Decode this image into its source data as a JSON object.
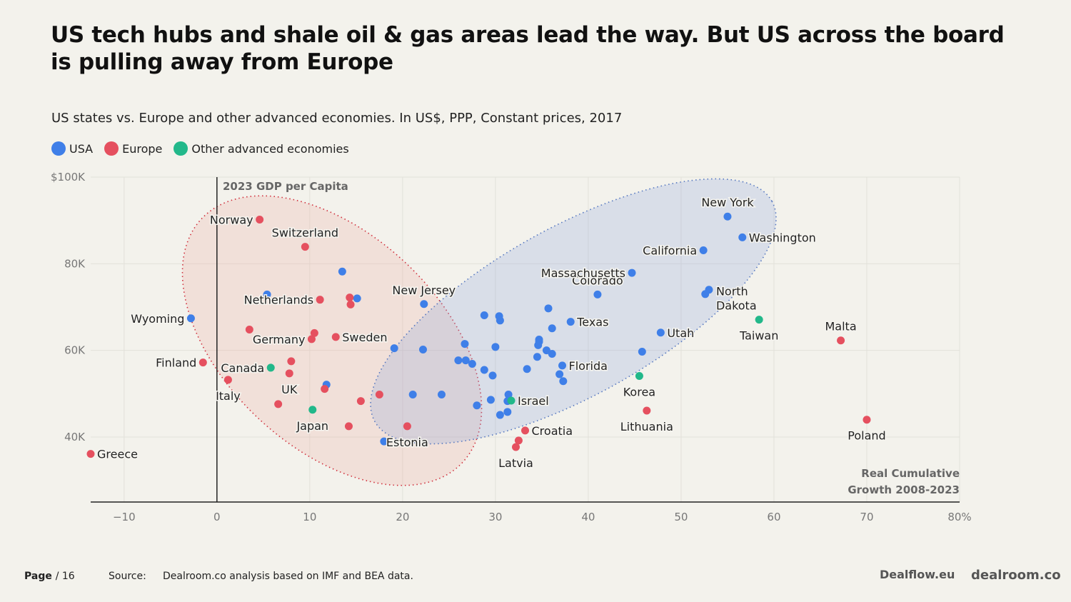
{
  "title": "US tech hubs and shale oil & gas areas lead the way. But US across the board is pulling away from Europe",
  "subtitle": "US states vs. Europe and other advanced economies. In US$, PPP, Constant prices, 2017",
  "legend": [
    {
      "label": "USA",
      "color": "#3f7fe8"
    },
    {
      "label": "Europe",
      "color": "#e5505f"
    },
    {
      "label": "Other advanced economies",
      "color": "#22b88a"
    }
  ],
  "footer": {
    "page": "Page",
    "page_num": "/ 16",
    "source_label": "Source:",
    "source": "Dealroom.co analysis based on IMF and BEA data.",
    "logo_dealflow": "Dealflow.eu",
    "logo_dealroom": "dealroom.co"
  },
  "chart_data": {
    "type": "scatter",
    "ylabel": "2023 GDP per Capita",
    "xlabel": "Real Cumulative Growth 2008-2023",
    "xlim": [
      -13.6,
      80
    ],
    "ylim": [
      25,
      100
    ],
    "x_ticks": [
      {
        "v": -10,
        "label": "−10"
      },
      {
        "v": 0,
        "label": "0"
      },
      {
        "v": 10,
        "label": "10"
      },
      {
        "v": 20,
        "label": "20"
      },
      {
        "v": 30,
        "label": "30"
      },
      {
        "v": 40,
        "label": "40"
      },
      {
        "v": 50,
        "label": "50"
      },
      {
        "v": 60,
        "label": "60"
      },
      {
        "v": 70,
        "label": "70"
      },
      {
        "v": 80,
        "label": "80%"
      }
    ],
    "y_ticks": [
      {
        "v": 100,
        "label": "$100K"
      },
      {
        "v": 80,
        "label": "80K"
      },
      {
        "v": 60,
        "label": "60K"
      },
      {
        "v": 40,
        "label": "40K"
      }
    ],
    "grid": true,
    "series": [
      {
        "name": "USA",
        "color": "#3f7fe8",
        "points": [
          {
            "x": -2.8,
            "y": 67.4,
            "label": "Wyoming"
          },
          {
            "x": 13.5,
            "y": 78.2
          },
          {
            "x": 15.1,
            "y": 72.0
          },
          {
            "x": 5.4,
            "y": 72.9
          },
          {
            "x": 11.8,
            "y": 52.1
          },
          {
            "x": 22.3,
            "y": 70.7,
            "label": "New Jersey"
          },
          {
            "x": 18.0,
            "y": 39.0
          },
          {
            "x": 19.1,
            "y": 60.5
          },
          {
            "x": 22.2,
            "y": 60.2
          },
          {
            "x": 21.1,
            "y": 49.8
          },
          {
            "x": 24.2,
            "y": 49.8
          },
          {
            "x": 28.8,
            "y": 68.1
          },
          {
            "x": 30.4,
            "y": 67.9
          },
          {
            "x": 30.5,
            "y": 66.9
          },
          {
            "x": 35.7,
            "y": 69.7
          },
          {
            "x": 41.0,
            "y": 72.9,
            "label": "Colorado"
          },
          {
            "x": 38.1,
            "y": 66.6,
            "label": "Texas"
          },
          {
            "x": 36.1,
            "y": 65.1
          },
          {
            "x": 26.7,
            "y": 61.5
          },
          {
            "x": 30.0,
            "y": 60.8
          },
          {
            "x": 26.0,
            "y": 57.7
          },
          {
            "x": 26.8,
            "y": 57.7
          },
          {
            "x": 27.5,
            "y": 56.9
          },
          {
            "x": 28.8,
            "y": 55.5
          },
          {
            "x": 29.7,
            "y": 54.2
          },
          {
            "x": 33.4,
            "y": 55.7
          },
          {
            "x": 34.7,
            "y": 62.5
          },
          {
            "x": 34.7,
            "y": 62.0
          },
          {
            "x": 34.6,
            "y": 61.2
          },
          {
            "x": 35.5,
            "y": 60.0
          },
          {
            "x": 36.1,
            "y": 59.2
          },
          {
            "x": 34.5,
            "y": 58.5
          },
          {
            "x": 37.2,
            "y": 56.5,
            "label": "Florida"
          },
          {
            "x": 36.9,
            "y": 54.5
          },
          {
            "x": 37.3,
            "y": 52.9
          },
          {
            "x": 45.8,
            "y": 59.7
          },
          {
            "x": 47.8,
            "y": 64.1,
            "label": "Utah"
          },
          {
            "x": 28.0,
            "y": 47.3
          },
          {
            "x": 29.5,
            "y": 48.6
          },
          {
            "x": 31.4,
            "y": 49.8
          },
          {
            "x": 31.3,
            "y": 48.3
          },
          {
            "x": 31.3,
            "y": 45.8
          },
          {
            "x": 30.5,
            "y": 45.1
          },
          {
            "x": 44.7,
            "y": 77.9,
            "label": "Massachusetts"
          },
          {
            "x": 55.0,
            "y": 90.9,
            "label": "New York"
          },
          {
            "x": 56.6,
            "y": 86.1,
            "label": "Washington"
          },
          {
            "x": 52.4,
            "y": 83.1,
            "label": "California"
          },
          {
            "x": 53.0,
            "y": 74.0,
            "label": "North Dakota"
          },
          {
            "x": 52.6,
            "y": 73.0
          }
        ]
      },
      {
        "name": "Europe",
        "color": "#e5505f",
        "points": [
          {
            "x": 4.6,
            "y": 90.2,
            "label": "Norway"
          },
          {
            "x": 9.5,
            "y": 83.9,
            "label": "Switzerland"
          },
          {
            "x": 11.1,
            "y": 71.7,
            "label": "Netherlands"
          },
          {
            "x": 14.3,
            "y": 72.2
          },
          {
            "x": 14.4,
            "y": 70.6
          },
          {
            "x": 3.5,
            "y": 64.8
          },
          {
            "x": 10.5,
            "y": 64.0
          },
          {
            "x": 10.2,
            "y": 62.6,
            "label": "Germany"
          },
          {
            "x": 12.8,
            "y": 63.1,
            "label": "Sweden"
          },
          {
            "x": -1.5,
            "y": 57.2,
            "label": "Finland"
          },
          {
            "x": 8.0,
            "y": 57.5
          },
          {
            "x": 7.8,
            "y": 54.7,
            "label": "UK"
          },
          {
            "x": 1.2,
            "y": 53.2,
            "label": "Italy"
          },
          {
            "x": 11.6,
            "y": 51.1
          },
          {
            "x": 6.6,
            "y": 47.6
          },
          {
            "x": 15.5,
            "y": 48.3
          },
          {
            "x": 17.5,
            "y": 49.8
          },
          {
            "x": 14.2,
            "y": 42.5
          },
          {
            "x": 20.5,
            "y": 42.5,
            "label": "Estonia"
          },
          {
            "x": -13.6,
            "y": 36.1,
            "label": "Greece"
          },
          {
            "x": 33.2,
            "y": 41.5,
            "label": "Croatia"
          },
          {
            "x": 32.5,
            "y": 39.2
          },
          {
            "x": 32.2,
            "y": 37.7,
            "label": "Latvia"
          },
          {
            "x": 46.3,
            "y": 46.1,
            "label": "Lithuania"
          },
          {
            "x": 67.2,
            "y": 62.3,
            "label": "Malta"
          },
          {
            "x": 70.0,
            "y": 44.0,
            "label": "Poland"
          }
        ]
      },
      {
        "name": "Other advanced economies",
        "color": "#22b88a",
        "points": [
          {
            "x": 5.8,
            "y": 56.0,
            "label": "Canada"
          },
          {
            "x": 10.3,
            "y": 46.3,
            "label": "Japan"
          },
          {
            "x": 31.7,
            "y": 48.4,
            "label": "Israel"
          },
          {
            "x": 45.5,
            "y": 54.1,
            "label": "Korea"
          },
          {
            "x": 58.4,
            "y": 67.1,
            "label": "Taiwan"
          }
        ]
      }
    ]
  }
}
